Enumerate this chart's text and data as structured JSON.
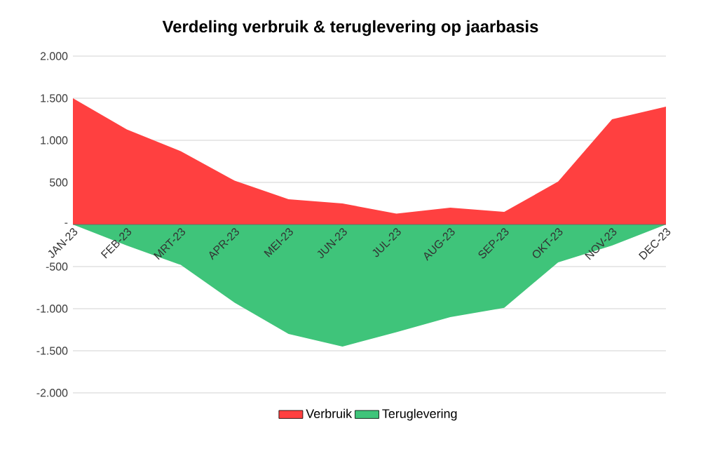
{
  "chart_data": {
    "type": "area",
    "title": "Verdeling verbruik & teruglevering op jaarbasis",
    "categories": [
      "JAN-23",
      "FEB-23",
      "MRT-23",
      "APR-23",
      "MEI-23",
      "JUN-23",
      "JUL-23",
      "AUG-23",
      "SEP-23",
      "OKT-23",
      "NOV-23",
      "DEC-23"
    ],
    "series": [
      {
        "name": "Verbruik",
        "color": "#ff4040",
        "values": [
          1500,
          1130,
          870,
          520,
          300,
          250,
          130,
          200,
          150,
          510,
          1250,
          1400
        ]
      },
      {
        "name": "Teruglevering",
        "color": "#3fc47a",
        "values": [
          0,
          -250,
          -480,
          -930,
          -1300,
          -1450,
          -1280,
          -1100,
          -990,
          -450,
          -250,
          0
        ]
      }
    ],
    "ylim": [
      -2000,
      2000
    ],
    "yticks": [
      {
        "value": -2000,
        "label": "-2.000"
      },
      {
        "value": -1500,
        "label": "-1.500"
      },
      {
        "value": -1000,
        "label": "-1.000"
      },
      {
        "value": -500,
        "label": "-500"
      },
      {
        "value": 0,
        "label": "-"
      },
      {
        "value": 500,
        "label": "500"
      },
      {
        "value": 1000,
        "label": "1.000"
      },
      {
        "value": 1500,
        "label": "1.500"
      },
      {
        "value": 2000,
        "label": "2.000"
      }
    ],
    "grid": "y",
    "legend": "bottom"
  }
}
